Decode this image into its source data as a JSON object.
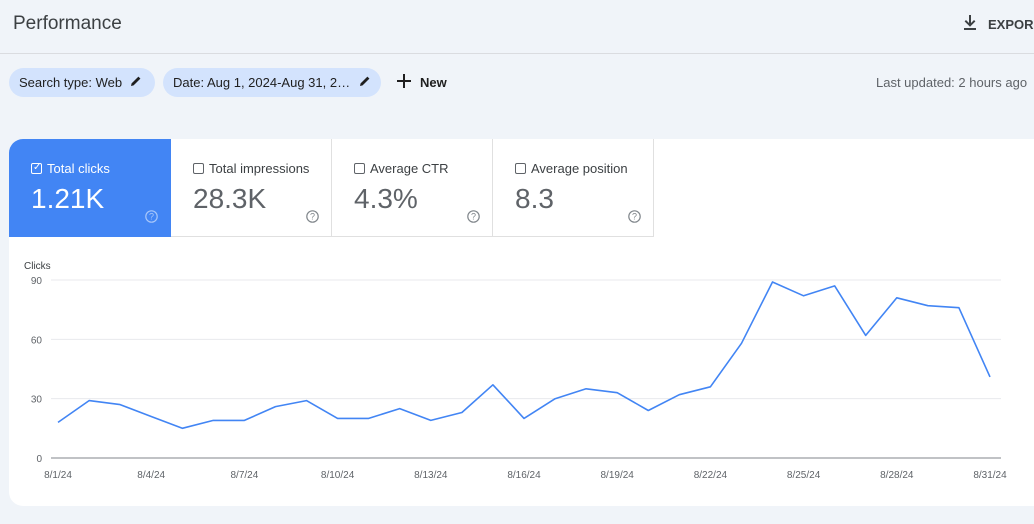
{
  "header": {
    "title": "Performance",
    "export_label": "EXPOR",
    "export_icon": "download-icon"
  },
  "filters": {
    "search_type": "Search type: Web",
    "date_range": "Date: Aug 1, 2024-Aug 31, 20...",
    "new_label": "New",
    "last_updated": "Last updated: 2 hours ago"
  },
  "metrics": [
    {
      "label": "Total clicks",
      "value": "1.21K",
      "selected": true
    },
    {
      "label": "Total impressions",
      "value": "28.3K",
      "selected": false
    },
    {
      "label": "Average CTR",
      "value": "4.3%",
      "selected": false
    },
    {
      "label": "Average position",
      "value": "8.3",
      "selected": false
    }
  ],
  "colors": {
    "accent": "#4285f4",
    "chip": "#d3e3fd",
    "background": "#f0f4f9"
  },
  "chart_data": {
    "type": "line",
    "ylabel": "Clicks",
    "ylim": [
      0,
      90
    ],
    "yticks": [
      "0",
      "30",
      "60",
      "90"
    ],
    "grid": true,
    "x": [
      "8/1/24",
      "8/2/24",
      "8/3/24",
      "8/4/24",
      "8/5/24",
      "8/6/24",
      "8/7/24",
      "8/8/24",
      "8/9/24",
      "8/10/24",
      "8/11/24",
      "8/12/24",
      "8/13/24",
      "8/14/24",
      "8/15/24",
      "8/16/24",
      "8/17/24",
      "8/18/24",
      "8/19/24",
      "8/20/24",
      "8/21/24",
      "8/22/24",
      "8/23/24",
      "8/24/24",
      "8/25/24",
      "8/26/24",
      "8/27/24",
      "8/28/24",
      "8/29/24",
      "8/30/24",
      "8/31/24"
    ],
    "xtick_labels": [
      "8/1/24",
      "8/4/24",
      "8/7/24",
      "8/10/24",
      "8/13/24",
      "8/16/24",
      "8/19/24",
      "8/22/24",
      "8/25/24",
      "8/28/24",
      "8/31/24"
    ],
    "series": [
      {
        "values": [
          18,
          29,
          27,
          21,
          15,
          19,
          19,
          26,
          29,
          20,
          20,
          25,
          19,
          23,
          37,
          20,
          30,
          35,
          33,
          24,
          32,
          36,
          58,
          89,
          82,
          87,
          62,
          81,
          77,
          76,
          41
        ]
      }
    ],
    "color": "#4285f4"
  }
}
